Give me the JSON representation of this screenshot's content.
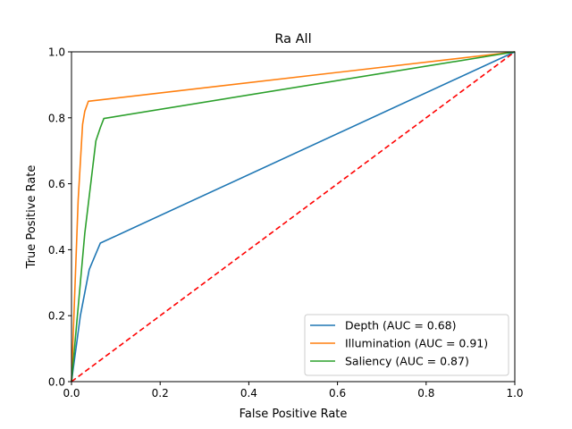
{
  "chart_data": {
    "type": "line",
    "title": "Ra All",
    "xlabel": "False Positive Rate",
    "ylabel": "True Positive Rate",
    "xlim": [
      0,
      1
    ],
    "ylim": [
      0,
      1
    ],
    "xticks": [
      "0.0",
      "0.2",
      "0.4",
      "0.6",
      "0.8",
      "1.0"
    ],
    "yticks": [
      "0.0",
      "0.2",
      "0.4",
      "0.6",
      "0.8",
      "1.0"
    ],
    "grid": false,
    "legend_position": "lower-right",
    "series": [
      {
        "name": "Depth (AUC = 0.68)",
        "color": "#1f77b4",
        "x": [
          0.0,
          0.02,
          0.04,
          0.065,
          1.0
        ],
        "y": [
          0.0,
          0.2,
          0.34,
          0.42,
          1.0
        ]
      },
      {
        "name": "Illumination (AUC = 0.91)",
        "color": "#ff7f0e",
        "x": [
          0.0,
          0.015,
          0.025,
          0.03,
          0.038,
          1.0
        ],
        "y": [
          0.0,
          0.55,
          0.78,
          0.82,
          0.85,
          1.0
        ]
      },
      {
        "name": "Saliency (AUC = 0.87)",
        "color": "#2ca02c",
        "x": [
          0.0,
          0.03,
          0.055,
          0.065,
          0.073,
          1.0
        ],
        "y": [
          0.0,
          0.45,
          0.73,
          0.77,
          0.798,
          1.0
        ]
      },
      {
        "name": "",
        "color": "#ff0000",
        "dashed": true,
        "x": [
          0.0,
          1.0
        ],
        "y": [
          0.0,
          1.0
        ]
      }
    ]
  }
}
